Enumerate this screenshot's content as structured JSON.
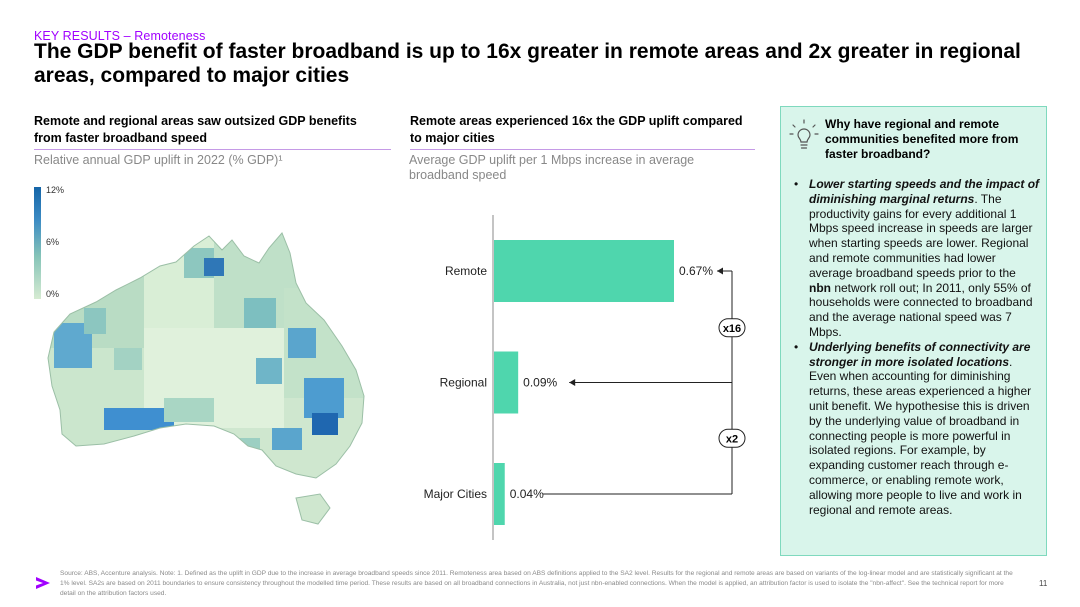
{
  "header": {
    "kicker": "KEY RESULTS – Remoteness",
    "title": "The GDP benefit of faster broadband is up to 16x greater in remote areas and 2x greater in regional areas, compared to major cities"
  },
  "left_panel": {
    "heading": "Remote and regional areas saw outsized GDP benefits from faster broadband speed",
    "subtitle": "Relative annual GDP uplift in 2022 (% GDP)¹",
    "legend": {
      "ticks": [
        "12%",
        "6%",
        "0%"
      ],
      "colors": [
        "#1565a8",
        "#3d8cc4",
        "#86c4b8",
        "#d6ebd2"
      ]
    }
  },
  "middle_panel": {
    "heading": "Remote areas experienced 16x the GDP uplift compared to major cities",
    "subtitle": "Average GDP uplift per 1 Mbps increase in average broadband speed"
  },
  "chart_data": {
    "type": "bar",
    "orientation": "horizontal",
    "categories": [
      "Remote",
      "Regional",
      "Major Cities"
    ],
    "values": [
      0.67,
      0.09,
      0.04
    ],
    "value_labels": [
      "0.67%",
      "0.09%",
      "0.04%"
    ],
    "unit": "%",
    "bar_color": "#4fd6ad",
    "grid": false,
    "annotations": [
      {
        "label": "x16",
        "from": "Major Cities",
        "to": "Remote"
      },
      {
        "label": "x2",
        "from": "Major Cities",
        "to": "Regional"
      }
    ]
  },
  "right_panel": {
    "title": "Why have regional and remote communities benefited more from faster broadband?",
    "bullet1": {
      "lead": "Lower starting speeds and the impact of diminishing marginal returns",
      "text_a": ". The productivity gains for every additional 1 Mbps speed increase in speeds are larger when starting speeds are lower. Regional and remote communities had lower average broadband speeds prior to the ",
      "nbn": "nbn",
      "text_b": " network roll out; In 2011, only 55% of households were connected to broadband and the average national speed was 7 Mbps."
    },
    "bullet2": {
      "lead": "Underlying benefits of connectivity are stronger in more isolated locations",
      "text": ". Even when accounting for diminishing returns, these areas experienced a higher unit benefit. We hypothesise this is driven by the underlying value of broadband in connecting people is more powerful in isolated regions. For example, by expanding customer reach through e-commerce, or enabling remote work, allowing more people to live and work in regional and remote areas."
    }
  },
  "footer": {
    "footnote": "Source: ABS, Accenture analysis. Note: 1. Defined as the uplift in GDP due to the increase in average broadband speeds since 2011. Remoteness area based on ABS definitions applied to the SA2 level. Results for the regional and remote areas are based on variants of the log-linear model and are statistically significant at the 1% level. SA2s are based on 2011 boundaries to ensure consistency throughout the modelled time period. These results are based on all broadband connections in Australia, not just nbn-enabled connections. When the model is applied, an attribution factor is used to isolate the \"nbn-affect\". See the technical report for more detail on the attribution factors used.",
    "page_number": "11"
  }
}
